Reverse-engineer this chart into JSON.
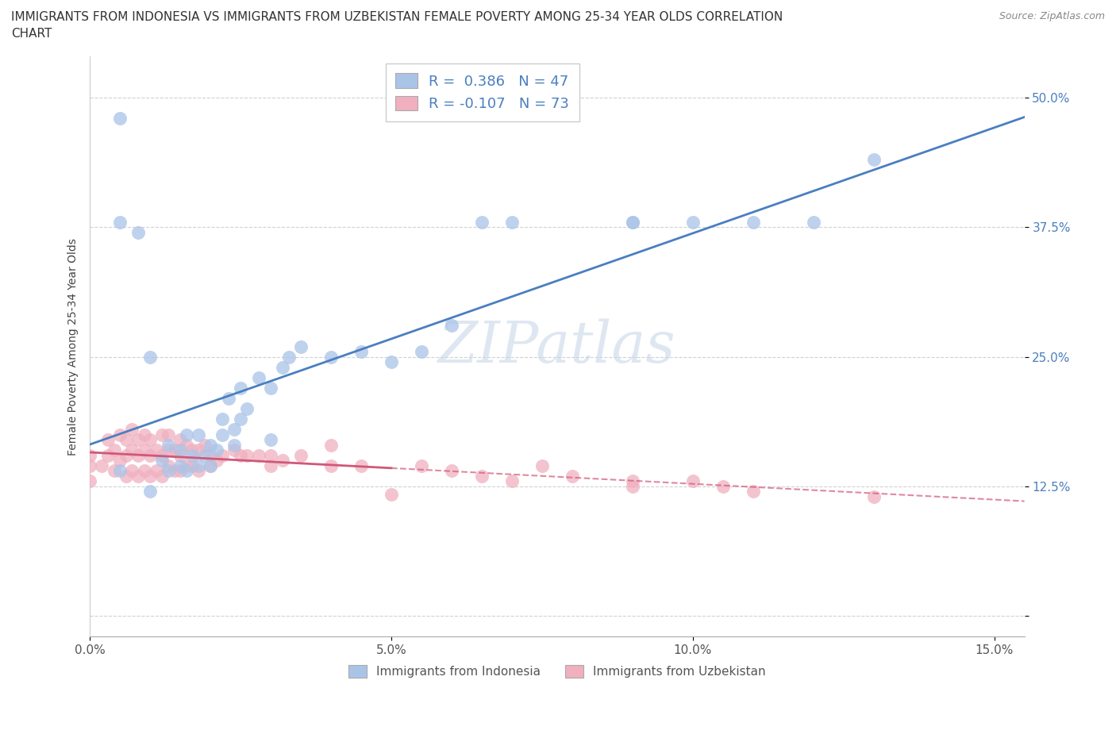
{
  "title_line1": "IMMIGRANTS FROM INDONESIA VS IMMIGRANTS FROM UZBEKISTAN FEMALE POVERTY AMONG 25-34 YEAR OLDS CORRELATION",
  "title_line2": "CHART",
  "source": "Source: ZipAtlas.com",
  "ylabel": "Female Poverty Among 25-34 Year Olds",
  "xlim": [
    0.0,
    0.155
  ],
  "ylim": [
    -0.02,
    0.54
  ],
  "xticks": [
    0.0,
    0.05,
    0.1,
    0.15
  ],
  "xtick_labels": [
    "0.0%",
    "5.0%",
    "10.0%",
    "15.0%"
  ],
  "yticks": [
    0.0,
    0.125,
    0.25,
    0.375,
    0.5
  ],
  "ytick_labels": [
    "",
    "12.5%",
    "25.0%",
    "37.5%",
    "50.0%"
  ],
  "r_indonesia": 0.386,
  "n_indonesia": 47,
  "r_uzbekistan": -0.107,
  "n_uzbekistan": 73,
  "color_indonesia": "#aac4e8",
  "color_uzbekistan": "#f0b0c0",
  "line_color_indonesia": "#4a7fc0",
  "line_color_uzbekistan": "#d05878",
  "watermark": "ZIPatlas",
  "title_fontsize": 11,
  "label_fontsize": 10,
  "tick_fontsize": 11,
  "indo_x": [
    0.005,
    0.01,
    0.005,
    0.008,
    0.013,
    0.015,
    0.012,
    0.016,
    0.013,
    0.015,
    0.018,
    0.017,
    0.018,
    0.019,
    0.02,
    0.016,
    0.02,
    0.021,
    0.022,
    0.024,
    0.022,
    0.023,
    0.024,
    0.025,
    0.025,
    0.026,
    0.028,
    0.01,
    0.03,
    0.03,
    0.032,
    0.033,
    0.035,
    0.04,
    0.045,
    0.05,
    0.055,
    0.06,
    0.065,
    0.07,
    0.09,
    0.09,
    0.1,
    0.11,
    0.12,
    0.13,
    0.005
  ],
  "indo_y": [
    0.14,
    0.12,
    0.48,
    0.37,
    0.14,
    0.145,
    0.15,
    0.14,
    0.165,
    0.16,
    0.145,
    0.155,
    0.175,
    0.155,
    0.145,
    0.175,
    0.165,
    0.16,
    0.175,
    0.165,
    0.19,
    0.21,
    0.18,
    0.19,
    0.22,
    0.2,
    0.23,
    0.25,
    0.22,
    0.17,
    0.24,
    0.25,
    0.26,
    0.25,
    0.255,
    0.245,
    0.255,
    0.28,
    0.38,
    0.38,
    0.38,
    0.38,
    0.38,
    0.38,
    0.38,
    0.44,
    0.38
  ],
  "uzb_x": [
    0.0,
    0.0,
    0.0,
    0.002,
    0.003,
    0.003,
    0.004,
    0.004,
    0.005,
    0.005,
    0.006,
    0.006,
    0.006,
    0.007,
    0.007,
    0.007,
    0.008,
    0.008,
    0.008,
    0.009,
    0.009,
    0.009,
    0.01,
    0.01,
    0.01,
    0.011,
    0.011,
    0.012,
    0.012,
    0.012,
    0.013,
    0.013,
    0.013,
    0.014,
    0.014,
    0.015,
    0.015,
    0.015,
    0.016,
    0.016,
    0.017,
    0.017,
    0.018,
    0.018,
    0.019,
    0.02,
    0.02,
    0.021,
    0.022,
    0.024,
    0.025,
    0.026,
    0.028,
    0.03,
    0.03,
    0.032,
    0.035,
    0.04,
    0.045,
    0.05,
    0.04,
    0.055,
    0.06,
    0.065,
    0.07,
    0.075,
    0.08,
    0.09,
    0.09,
    0.1,
    0.105,
    0.11,
    0.13
  ],
  "uzb_y": [
    0.155,
    0.145,
    0.13,
    0.145,
    0.155,
    0.17,
    0.14,
    0.16,
    0.15,
    0.175,
    0.135,
    0.155,
    0.17,
    0.14,
    0.16,
    0.18,
    0.135,
    0.155,
    0.17,
    0.14,
    0.16,
    0.175,
    0.135,
    0.155,
    0.17,
    0.14,
    0.16,
    0.135,
    0.155,
    0.175,
    0.145,
    0.16,
    0.175,
    0.14,
    0.16,
    0.14,
    0.155,
    0.17,
    0.145,
    0.165,
    0.145,
    0.16,
    0.14,
    0.16,
    0.165,
    0.145,
    0.155,
    0.15,
    0.155,
    0.16,
    0.155,
    0.155,
    0.155,
    0.155,
    0.145,
    0.15,
    0.155,
    0.145,
    0.145,
    0.117,
    0.165,
    0.145,
    0.14,
    0.135,
    0.13,
    0.145,
    0.135,
    0.13,
    0.125,
    0.13,
    0.125,
    0.12,
    0.115
  ],
  "background_color": "#ffffff",
  "grid_color": "#cccccc"
}
